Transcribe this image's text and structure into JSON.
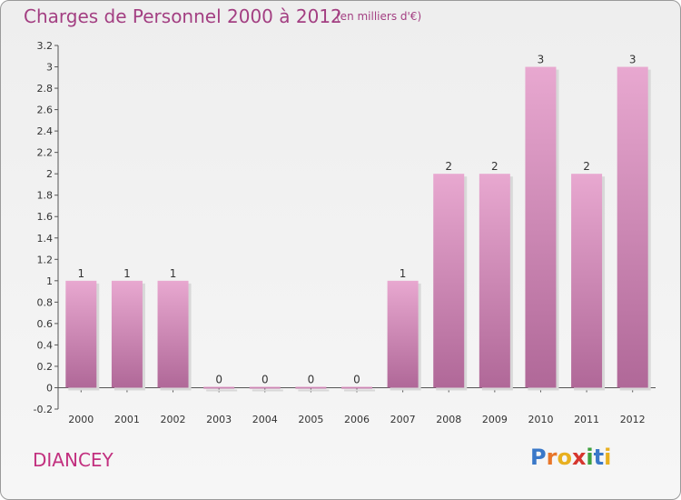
{
  "title": "Charges de Personnel 2000 à 2012",
  "subtitle": "(en milliers d'€)",
  "commune": "DIANCEY",
  "logo": {
    "text": "Proxiti",
    "letter_colors": [
      "#3a78c8",
      "#e8762a",
      "#e8b020",
      "#d6362e",
      "#3ea13e",
      "#3a78c8",
      "#e8b020"
    ]
  },
  "colors": {
    "bar_top": "#e8a8d0",
    "bar_bottom": "#b06898",
    "title": "#a33f82",
    "commune": "#c2307f"
  },
  "chart_data": {
    "type": "bar",
    "categories": [
      "2000",
      "2001",
      "2002",
      "2003",
      "2004",
      "2005",
      "2006",
      "2007",
      "2008",
      "2009",
      "2010",
      "2011",
      "2012"
    ],
    "values": [
      1,
      1,
      1,
      0,
      0,
      0,
      0,
      1,
      2,
      2,
      3,
      2,
      3
    ],
    "data_labels": [
      "1",
      "1",
      "1",
      "0",
      "0",
      "0",
      "0",
      "1",
      "2",
      "2",
      "3",
      "2",
      "3"
    ],
    "title": "Charges de Personnel 2000 à 2012",
    "xlabel": "",
    "ylabel": "",
    "ylim": [
      -0.2,
      3.2
    ],
    "yticks": [
      -0.2,
      0,
      0.2,
      0.4,
      0.6,
      0.8,
      1,
      1.2,
      1.4,
      1.6,
      1.8,
      2,
      2.2,
      2.4,
      2.6,
      2.8,
      3,
      3.2
    ],
    "ytick_labels": [
      "-0.2",
      "0",
      "0.2",
      "0.4",
      "0.6",
      "0.8",
      "1",
      "1.2",
      "1.4",
      "1.6",
      "1.8",
      "2",
      "2.2",
      "2.4",
      "2.6",
      "2.8",
      "3",
      "3.2"
    ],
    "grid": false,
    "legend": "none"
  }
}
